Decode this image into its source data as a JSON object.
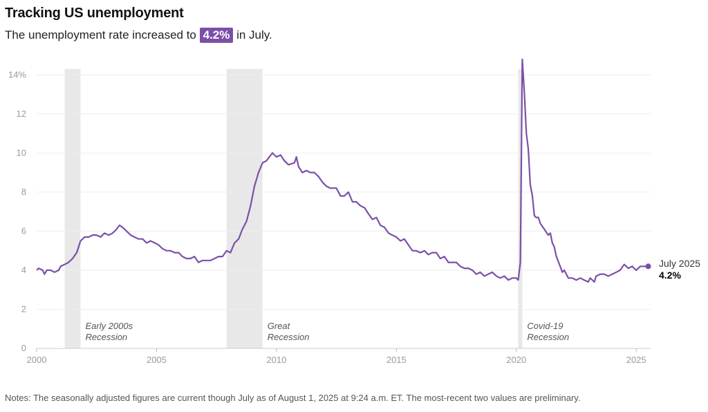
{
  "header": {
    "title": "Tracking US unemployment",
    "subtitle_pre": "The unemployment rate increased to",
    "subtitle_value": "4.2%",
    "subtitle_post": "in July."
  },
  "notes": "Notes: The seasonally adjusted figures are current though July as of August 1, 2025 at 9:24 a.m. ET. The most-recent two values are preliminary.",
  "colors": {
    "line": "#7b4fa8",
    "highlight": "#7b4fa8",
    "recession": "#e8e8e8",
    "grid": "#eeeeee"
  },
  "chart_data": {
    "type": "line",
    "title": "Tracking US unemployment",
    "xlim": [
      2000,
      2025.6
    ],
    "ylim": [
      0,
      15
    ],
    "grid": true,
    "x_ticks": [
      2000,
      2005,
      2010,
      2015,
      2020,
      2025
    ],
    "x_tick_labels": [
      "2000",
      "2005",
      "2010",
      "2015",
      "2020",
      "2025"
    ],
    "y_ticks": [
      0,
      2,
      4,
      6,
      8,
      10,
      12,
      14
    ],
    "y_tick_labels": [
      "0",
      "2",
      "4",
      "6",
      "8",
      "10",
      "12",
      "14%"
    ],
    "recessions": [
      {
        "start": 2001.17,
        "end": 2001.83,
        "label_line1": "Early 2000s",
        "label_line2": "Recession"
      },
      {
        "start": 2007.92,
        "end": 2009.42,
        "label_line1": "Great",
        "label_line2": "Recession"
      },
      {
        "start": 2020.08,
        "end": 2020.25,
        "label_line1": "Covid-19",
        "label_line2": "Recession"
      }
    ],
    "end_label": {
      "date": "July 2025",
      "value": "4.2%"
    },
    "series": [
      {
        "values": [
          [
            2000.0,
            4.0
          ],
          [
            2000.08,
            4.1
          ],
          [
            2000.25,
            4.0
          ],
          [
            2000.33,
            3.8
          ],
          [
            2000.42,
            4.0
          ],
          [
            2000.58,
            4.0
          ],
          [
            2000.75,
            3.9
          ],
          [
            2000.92,
            4.0
          ],
          [
            2001.0,
            4.2
          ],
          [
            2001.17,
            4.3
          ],
          [
            2001.33,
            4.4
          ],
          [
            2001.5,
            4.6
          ],
          [
            2001.67,
            4.9
          ],
          [
            2001.83,
            5.5
          ],
          [
            2002.0,
            5.7
          ],
          [
            2002.17,
            5.7
          ],
          [
            2002.33,
            5.8
          ],
          [
            2002.5,
            5.8
          ],
          [
            2002.67,
            5.7
          ],
          [
            2002.83,
            5.9
          ],
          [
            2003.0,
            5.8
          ],
          [
            2003.17,
            5.9
          ],
          [
            2003.33,
            6.1
          ],
          [
            2003.45,
            6.3
          ],
          [
            2003.58,
            6.2
          ],
          [
            2003.75,
            6.0
          ],
          [
            2003.92,
            5.8
          ],
          [
            2004.08,
            5.7
          ],
          [
            2004.25,
            5.6
          ],
          [
            2004.42,
            5.6
          ],
          [
            2004.58,
            5.4
          ],
          [
            2004.75,
            5.5
          ],
          [
            2004.92,
            5.4
          ],
          [
            2005.08,
            5.3
          ],
          [
            2005.25,
            5.1
          ],
          [
            2005.42,
            5.0
          ],
          [
            2005.58,
            5.0
          ],
          [
            2005.75,
            4.9
          ],
          [
            2005.92,
            4.9
          ],
          [
            2006.08,
            4.7
          ],
          [
            2006.25,
            4.6
          ],
          [
            2006.42,
            4.6
          ],
          [
            2006.58,
            4.7
          ],
          [
            2006.75,
            4.4
          ],
          [
            2006.92,
            4.5
          ],
          [
            2007.08,
            4.5
          ],
          [
            2007.25,
            4.5
          ],
          [
            2007.42,
            4.6
          ],
          [
            2007.58,
            4.7
          ],
          [
            2007.75,
            4.7
          ],
          [
            2007.92,
            5.0
          ],
          [
            2008.08,
            4.9
          ],
          [
            2008.25,
            5.4
          ],
          [
            2008.42,
            5.6
          ],
          [
            2008.58,
            6.1
          ],
          [
            2008.75,
            6.5
          ],
          [
            2008.92,
            7.3
          ],
          [
            2009.08,
            8.3
          ],
          [
            2009.25,
            9.0
          ],
          [
            2009.42,
            9.5
          ],
          [
            2009.58,
            9.6
          ],
          [
            2009.83,
            10.0
          ],
          [
            2010.0,
            9.8
          ],
          [
            2010.17,
            9.9
          ],
          [
            2010.33,
            9.6
          ],
          [
            2010.5,
            9.4
          ],
          [
            2010.75,
            9.5
          ],
          [
            2010.83,
            9.8
          ],
          [
            2010.92,
            9.3
          ],
          [
            2011.08,
            9.0
          ],
          [
            2011.25,
            9.1
          ],
          [
            2011.42,
            9.0
          ],
          [
            2011.58,
            9.0
          ],
          [
            2011.75,
            8.8
          ],
          [
            2011.92,
            8.5
          ],
          [
            2012.08,
            8.3
          ],
          [
            2012.25,
            8.2
          ],
          [
            2012.5,
            8.2
          ],
          [
            2012.67,
            7.8
          ],
          [
            2012.83,
            7.8
          ],
          [
            2013.0,
            8.0
          ],
          [
            2013.17,
            7.5
          ],
          [
            2013.33,
            7.5
          ],
          [
            2013.5,
            7.3
          ],
          [
            2013.67,
            7.2
          ],
          [
            2013.83,
            6.9
          ],
          [
            2014.0,
            6.6
          ],
          [
            2014.17,
            6.7
          ],
          [
            2014.33,
            6.3
          ],
          [
            2014.5,
            6.2
          ],
          [
            2014.67,
            5.9
          ],
          [
            2014.83,
            5.8
          ],
          [
            2015.0,
            5.7
          ],
          [
            2015.17,
            5.5
          ],
          [
            2015.33,
            5.6
          ],
          [
            2015.5,
            5.3
          ],
          [
            2015.67,
            5.0
          ],
          [
            2015.83,
            5.0
          ],
          [
            2016.0,
            4.9
          ],
          [
            2016.17,
            5.0
          ],
          [
            2016.33,
            4.8
          ],
          [
            2016.5,
            4.9
          ],
          [
            2016.67,
            4.9
          ],
          [
            2016.83,
            4.6
          ],
          [
            2017.0,
            4.7
          ],
          [
            2017.17,
            4.4
          ],
          [
            2017.33,
            4.4
          ],
          [
            2017.5,
            4.4
          ],
          [
            2017.67,
            4.2
          ],
          [
            2017.83,
            4.1
          ],
          [
            2018.0,
            4.1
          ],
          [
            2018.17,
            4.0
          ],
          [
            2018.33,
            3.8
          ],
          [
            2018.5,
            3.9
          ],
          [
            2018.67,
            3.7
          ],
          [
            2018.83,
            3.8
          ],
          [
            2019.0,
            3.9
          ],
          [
            2019.17,
            3.7
          ],
          [
            2019.33,
            3.6
          ],
          [
            2019.5,
            3.7
          ],
          [
            2019.67,
            3.5
          ],
          [
            2019.83,
            3.6
          ],
          [
            2020.0,
            3.6
          ],
          [
            2020.08,
            3.5
          ],
          [
            2020.17,
            4.4
          ],
          [
            2020.25,
            14.8
          ],
          [
            2020.33,
            13.2
          ],
          [
            2020.42,
            11.0
          ],
          [
            2020.5,
            10.2
          ],
          [
            2020.58,
            8.4
          ],
          [
            2020.67,
            7.8
          ],
          [
            2020.75,
            6.8
          ],
          [
            2020.83,
            6.7
          ],
          [
            2020.92,
            6.7
          ],
          [
            2021.0,
            6.4
          ],
          [
            2021.17,
            6.1
          ],
          [
            2021.33,
            5.8
          ],
          [
            2021.42,
            5.9
          ],
          [
            2021.5,
            5.4
          ],
          [
            2021.58,
            5.2
          ],
          [
            2021.67,
            4.7
          ],
          [
            2021.83,
            4.2
          ],
          [
            2021.92,
            3.9
          ],
          [
            2022.0,
            4.0
          ],
          [
            2022.17,
            3.6
          ],
          [
            2022.33,
            3.6
          ],
          [
            2022.5,
            3.5
          ],
          [
            2022.67,
            3.6
          ],
          [
            2022.83,
            3.5
          ],
          [
            2023.0,
            3.4
          ],
          [
            2023.08,
            3.6
          ],
          [
            2023.17,
            3.5
          ],
          [
            2023.25,
            3.4
          ],
          [
            2023.33,
            3.7
          ],
          [
            2023.5,
            3.8
          ],
          [
            2023.67,
            3.8
          ],
          [
            2023.83,
            3.7
          ],
          [
            2024.0,
            3.8
          ],
          [
            2024.17,
            3.9
          ],
          [
            2024.33,
            4.0
          ],
          [
            2024.5,
            4.3
          ],
          [
            2024.67,
            4.1
          ],
          [
            2024.83,
            4.2
          ],
          [
            2025.0,
            4.0
          ],
          [
            2025.17,
            4.2
          ],
          [
            2025.33,
            4.2
          ],
          [
            2025.5,
            4.2
          ]
        ]
      }
    ]
  }
}
